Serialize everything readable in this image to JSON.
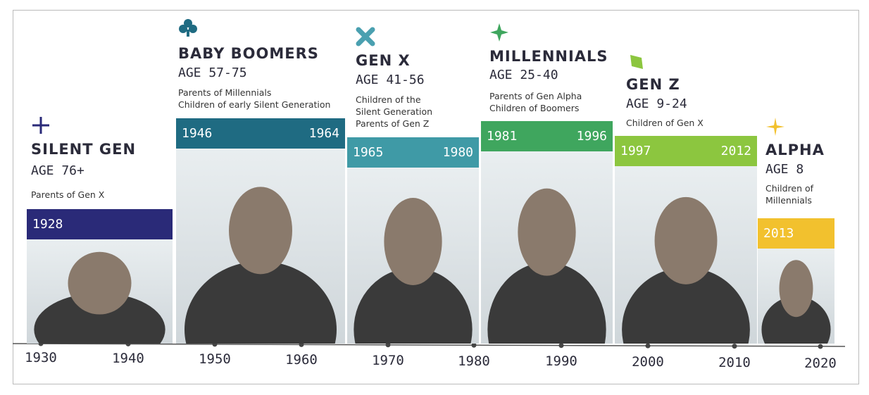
{
  "generations": [
    {
      "name": "SILENT GEN",
      "age": "AGE 76+",
      "description": [
        "Parents of Gen X"
      ],
      "start": "1928"
    },
    {
      "name": "BABY BOOMERS",
      "age": "AGE 57-75",
      "description": [
        "Parents of Millennials",
        "Children of early Silent Generation"
      ],
      "start": "1946",
      "end": "1964"
    },
    {
      "name": "GEN X",
      "age": "AGE 41-56",
      "description": [
        "Children of the",
        "Silent Generation",
        "Parents of Gen Z"
      ],
      "start": "1965",
      "end": "1980"
    },
    {
      "name": "MILLENNIALS",
      "age": "AGE 25-40",
      "description": [
        "Parents of Gen Alpha",
        "Children of Boomers"
      ],
      "start": "1981",
      "end": "1996"
    },
    {
      "name": "GEN Z",
      "age": "AGE 9-24",
      "description": [
        "Children of Gen X"
      ],
      "start": "1997",
      "end": "2012"
    },
    {
      "name": "ALPHA",
      "age": "AGE 8",
      "description": [
        "Children of",
        "Millennials"
      ],
      "start": "2013"
    }
  ],
  "timeline": {
    "ticks": [
      "1930",
      "1940",
      "1950",
      "1960",
      "1970",
      "1980",
      "1990",
      "2000",
      "2010",
      "2020"
    ]
  }
}
